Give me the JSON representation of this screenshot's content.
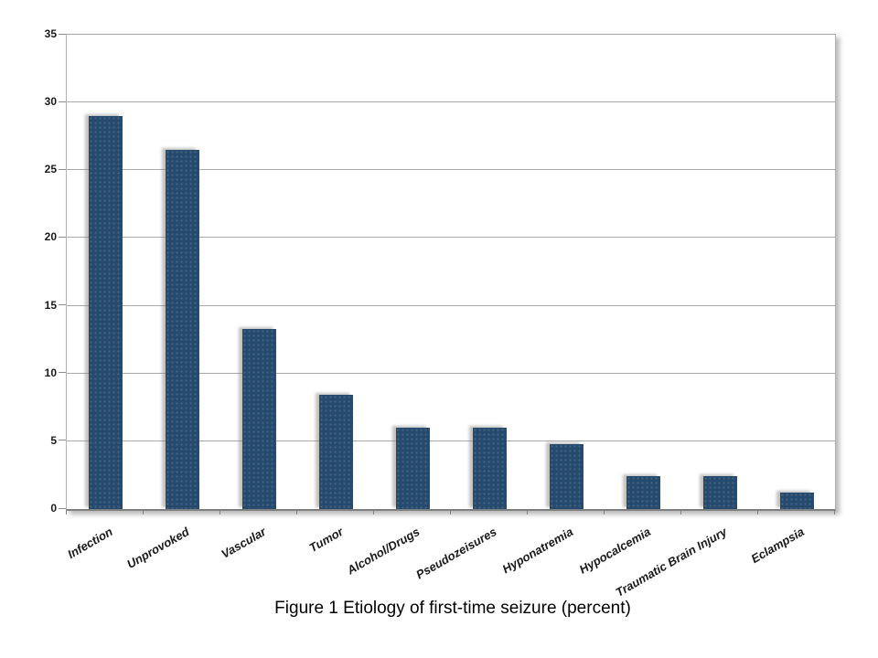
{
  "chart_data": {
    "type": "bar",
    "title": "Figure 1 Etiology of first-time seizure (percent)",
    "xlabel": "",
    "ylabel": "",
    "categories": [
      "Infection",
      "Unprovoked",
      "Vascular",
      "Tumor",
      "Alcohol/Drugs",
      "Pseudozeisures",
      "Hyponatremia",
      "Hypocalcemia",
      "Traumatic Brain Injury",
      "Eclampsia"
    ],
    "values": [
      29,
      26.5,
      13.3,
      8.4,
      6,
      6,
      4.8,
      2.4,
      2.4,
      1.2
    ],
    "ylim": [
      0,
      35
    ],
    "y_ticks": [
      0,
      5,
      10,
      15,
      20,
      25,
      30,
      35
    ],
    "grid": true,
    "legend": false,
    "bar_color": "#254a6d",
    "gridline_color": "#9a9a9a",
    "axis_color": "#7f7f7f"
  }
}
